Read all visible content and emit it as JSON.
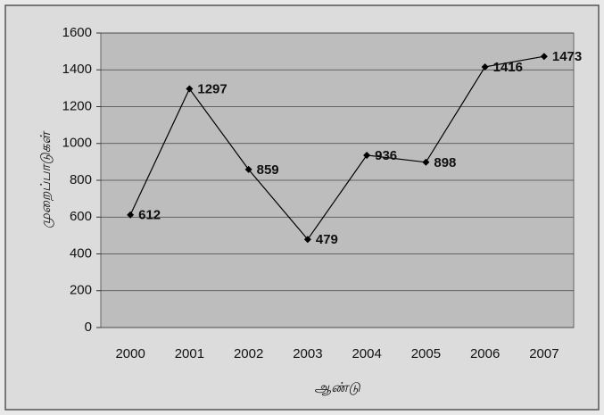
{
  "chart_data": {
    "type": "line",
    "y_label": "முறைப்பாடுகள்",
    "x_label": "ஆண்டு",
    "categories": [
      "2000",
      "2001",
      "2002",
      "2003",
      "2004",
      "2005",
      "2006",
      "2007"
    ],
    "series": [
      {
        "name": "முறைப்பாடுகள்",
        "color": "#000000",
        "values": [
          612,
          1297,
          859,
          479,
          936,
          898,
          1416,
          1473
        ]
      }
    ],
    "ylim": [
      0,
      1600
    ],
    "yticks": [
      0,
      200,
      400,
      600,
      800,
      1000,
      1200,
      1400,
      1600
    ],
    "grid": true
  }
}
